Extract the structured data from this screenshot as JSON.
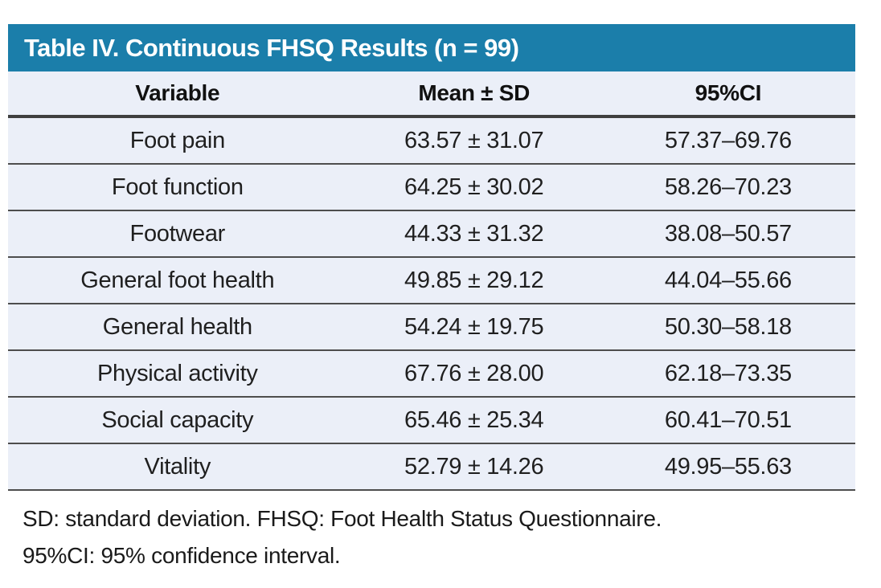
{
  "table": {
    "title": "Table IV. Continuous FHSQ Results (n = 99)",
    "columns": {
      "variable": "Variable",
      "mean_sd": "Mean ± SD",
      "ci": "95%CI"
    },
    "rows": [
      {
        "variable": "Foot pain",
        "mean_sd": "63.57 ± 31.07",
        "ci": "57.37–69.76"
      },
      {
        "variable": "Foot function",
        "mean_sd": "64.25 ± 30.02",
        "ci": "58.26–70.23"
      },
      {
        "variable": "Footwear",
        "mean_sd": "44.33 ± 31.32",
        "ci": "38.08–50.57"
      },
      {
        "variable": "General foot health",
        "mean_sd": "49.85 ± 29.12",
        "ci": "44.04–55.66"
      },
      {
        "variable": "General health",
        "mean_sd": "54.24 ± 19.75",
        "ci": "50.30–58.18"
      },
      {
        "variable": "Physical activity",
        "mean_sd": "67.76 ± 28.00",
        "ci": "62.18–73.35"
      },
      {
        "variable": "Social capacity",
        "mean_sd": "65.46 ± 25.34",
        "ci": "60.41–70.51"
      },
      {
        "variable": "Vitality",
        "mean_sd": "52.79 ± 14.26",
        "ci": "49.95–55.63"
      }
    ],
    "footnotes": {
      "line1": "SD: standard deviation. FHSQ: Foot Health Status Questionnaire.",
      "line2": "95%CI: 95% confidence interval."
    },
    "colors": {
      "title_bar_bg": "#1b7eaa",
      "title_text": "#ffffff",
      "row_bg": "#ebeff8",
      "rule_dark": "#3f3f3f",
      "rule_thin": "#4d4d4d",
      "body_text": "#1f1f1f"
    }
  }
}
